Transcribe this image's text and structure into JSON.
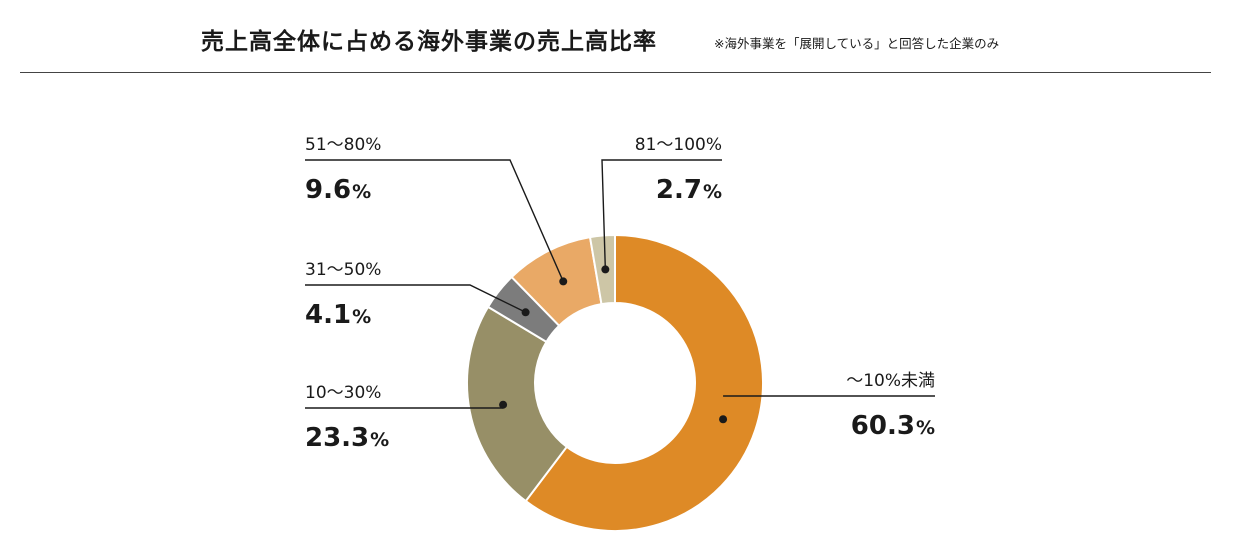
{
  "header": {
    "title": "売上高全体に占める海外事業の売上高比率",
    "note": "※海外事業を「展開している」と回答した企業のみ"
  },
  "chart_data": {
    "type": "pie",
    "style": "donut",
    "categories": [
      "〜10%未満",
      "10〜30%",
      "31〜50%",
      "51〜80%",
      "81〜100%"
    ],
    "values": [
      60.3,
      23.3,
      4.1,
      9.6,
      2.7
    ],
    "value_labels": [
      "60.3",
      "23.3",
      "4.1",
      "9.6",
      "2.7"
    ],
    "unit": "%",
    "colors": [
      "#de8a26",
      "#978f67",
      "#7c7c7c",
      "#e9a966",
      "#cdc6a6"
    ],
    "start_angle": "12 o'clock",
    "direction": "clockwise",
    "legend": "none"
  }
}
